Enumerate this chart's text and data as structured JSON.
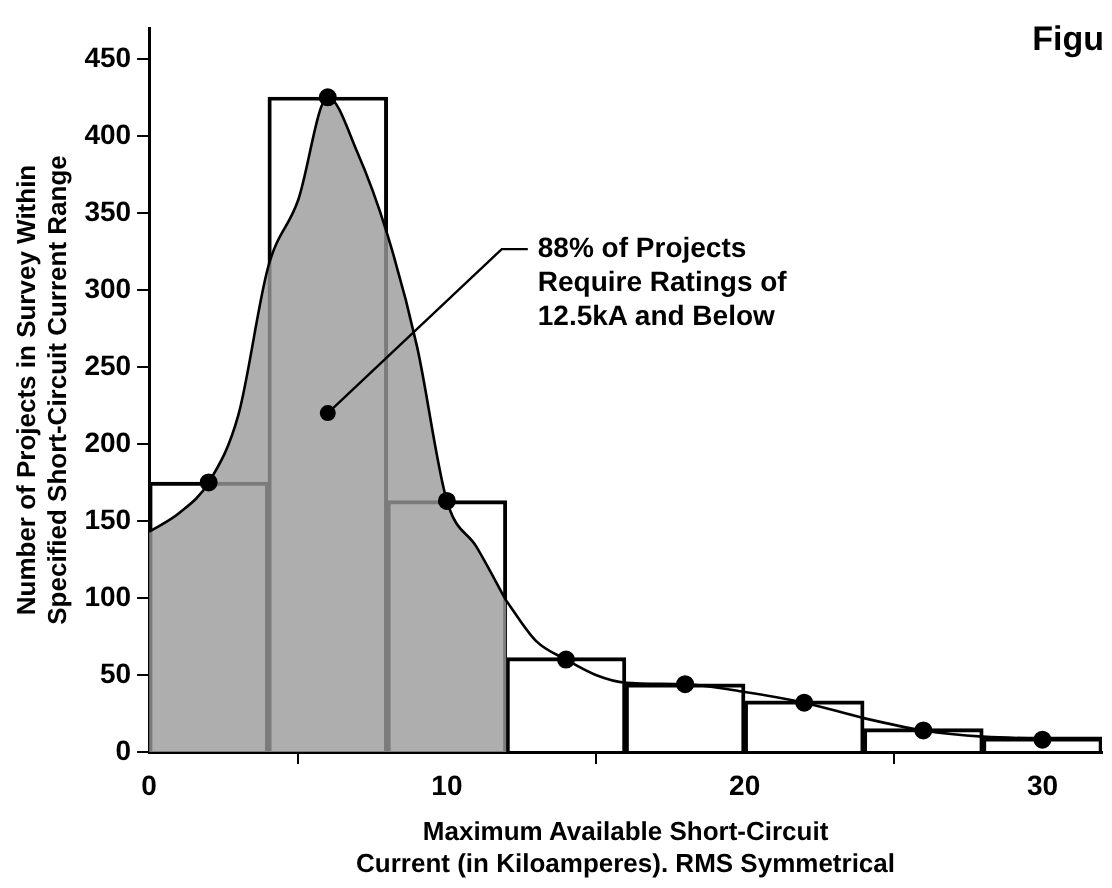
{
  "chart_data": {
    "type": "bar",
    "title": "Figu",
    "xlabel": "Maximum Available Short-Circuit\nCurrent (in Kiloamperes). RMS Symmetrical",
    "ylabel": "Number of Projects in Survey Within\nSpecified Short-Circuit Current Range",
    "xlim": [
      0,
      32
    ],
    "xticks": [
      0,
      10,
      20,
      30
    ],
    "ylim": [
      0,
      470
    ],
    "yticks": [
      0,
      50,
      100,
      150,
      200,
      250,
      300,
      350,
      400,
      450
    ],
    "grid": false,
    "legend": false,
    "series": [
      {
        "color": "#000000",
        "x": [
          2,
          6,
          10,
          14,
          18,
          22,
          26,
          30
        ],
        "values": [
          175,
          425,
          163,
          61,
          44,
          33,
          15,
          9
        ]
      },
      {
        "type": "area",
        "color": "#9a9a9a",
        "x": [
          0,
          1,
          2,
          3,
          4,
          5,
          6,
          7,
          8,
          9,
          10,
          11,
          12
        ],
        "values": [
          143,
          155,
          175,
          219,
          315,
          358,
          425,
          389,
          336,
          263,
          163,
          133,
          98
        ]
      },
      {
        "type": "line",
        "color": "#000000",
        "marker": "none",
        "x": [
          12,
          13,
          14,
          15,
          16,
          18,
          20,
          22,
          24,
          26,
          28,
          30,
          32
        ],
        "values": [
          98,
          72,
          60,
          50,
          45,
          44,
          39,
          32,
          22,
          14,
          10,
          9,
          9
        ]
      },
      {
        "type": "scatter",
        "color": "#000000",
        "marker": "circle",
        "x": [
          2,
          6,
          10,
          14,
          18,
          22,
          26,
          30
        ],
        "values": [
          175,
          425,
          163,
          60,
          44,
          32,
          14,
          8
        ]
      }
    ],
    "annotations": [
      {
        "text": "88% of Projects\nRequire Ratings of\n12.5kA and Below",
        "x": 6,
        "y": 220
      }
    ]
  }
}
